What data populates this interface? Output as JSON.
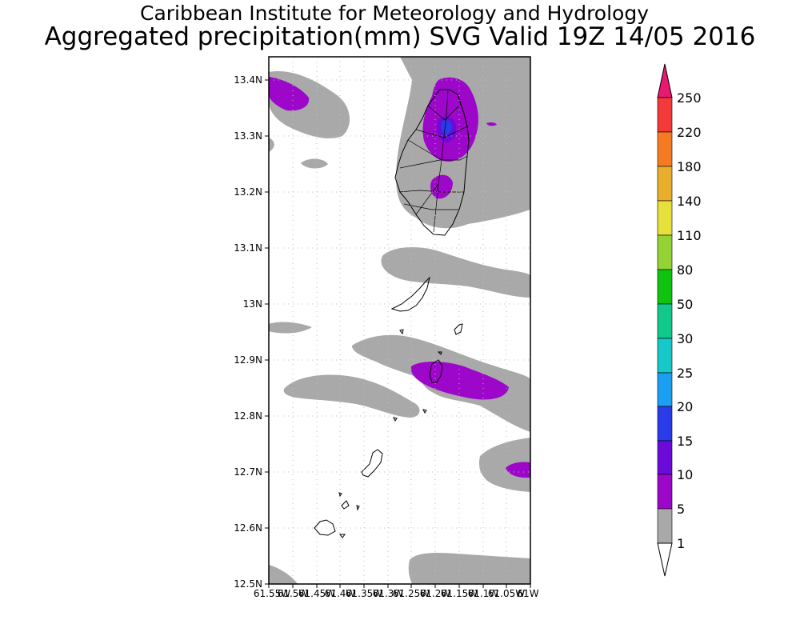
{
  "header": {
    "title": "Caribbean Institute for Meteorology and Hydrology",
    "subtitle": "Aggregated precipitation(mm) SVG Valid 19Z 14/05 2016"
  },
  "map": {
    "lat_ticks": [
      "13.4N",
      "13.3N",
      "13.2N",
      "13.1N",
      "13N",
      "12.9N",
      "12.8N",
      "12.7N",
      "12.6N",
      "12.5N"
    ],
    "lon_ticks": [
      "61.55W",
      "61.5W",
      "61.45W",
      "61.4W",
      "61.35W",
      "61.3W",
      "61.25W",
      "61.2W",
      "61.15W",
      "61.1W",
      "61.05W",
      "61W"
    ],
    "lat_range": [
      12.5,
      13.44
    ],
    "lon_range": [
      -61.55,
      -61.0
    ]
  },
  "legend": {
    "levels": [
      "1",
      "5",
      "10",
      "15",
      "20",
      "25",
      "30",
      "50",
      "80",
      "110",
      "140",
      "180",
      "220",
      "250"
    ],
    "colors": {
      "below_1": "#ffffff",
      "1-5": "#a9a9a9",
      "5-10": "#9c07c9",
      "10-15": "#6a0bd9",
      "15-20": "#2a3be9",
      "20-25": "#1b9ff3",
      "25-30": "#17c8c9",
      "30-50": "#10c98a",
      "50-80": "#0fc40f",
      "80-110": "#95d233",
      "110-140": "#e5e13a",
      "140-180": "#e8ae2c",
      "180-220": "#f57a22",
      "220-250": "#f3393a",
      "above_250": "#e8196f"
    }
  }
}
